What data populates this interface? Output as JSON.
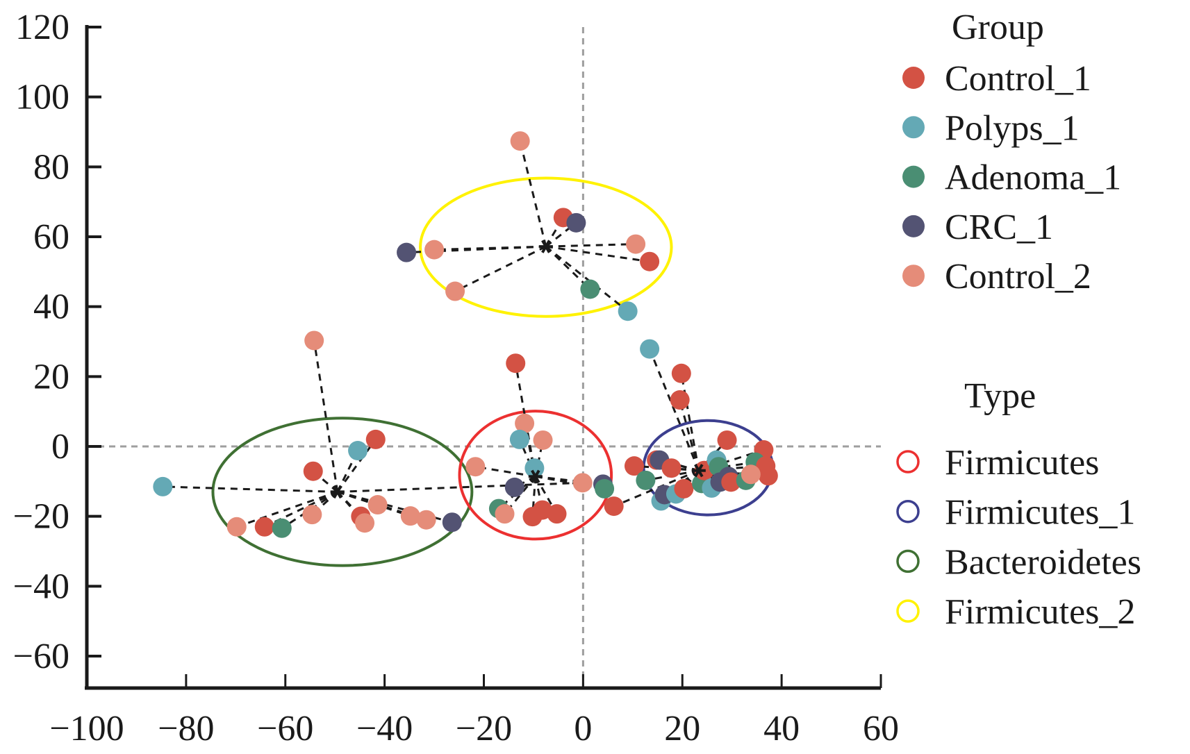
{
  "chart_data": {
    "type": "scatter",
    "title": "",
    "xlabel": "",
    "ylabel": "",
    "xlim": [
      -100,
      60
    ],
    "ylim": [
      -60,
      120
    ],
    "xticks": [
      -100,
      -80,
      -60,
      -40,
      -20,
      0,
      20,
      40,
      60
    ],
    "yticks": [
      -60,
      -40,
      -20,
      0,
      20,
      40,
      60,
      80,
      100,
      120
    ],
    "xtick_labels": [
      "−100",
      "−80",
      "−60",
      "−40",
      "−20",
      "0",
      "20",
      "40",
      "60"
    ],
    "ytick_labels": [
      "−60",
      "−40",
      "−20",
      "0",
      "20",
      "40",
      "60",
      "80",
      "100",
      "120"
    ],
    "reference_lines": {
      "x": 0,
      "y": 0,
      "style": "dashed",
      "color": "#9e9e9e"
    },
    "grid": false,
    "legend_placement": "right",
    "group_legend": {
      "title": "Group",
      "entries": [
        {
          "name": "Control_1",
          "color": "#d35244"
        },
        {
          "name": "Polyps_1",
          "color": "#64a9b5"
        },
        {
          "name": "Adenoma_1",
          "color": "#4a8e73"
        },
        {
          "name": "CRC_1",
          "color": "#535373"
        },
        {
          "name": "Control_2",
          "color": "#e58c79"
        }
      ]
    },
    "type_legend": {
      "title": "Type",
      "entries": [
        {
          "name": "Firmicutes",
          "color": "#ec3030"
        },
        {
          "name": "Firmicutes_1",
          "color": "#3c3f8f"
        },
        {
          "name": "Bacteroidetes",
          "color": "#3f7033"
        },
        {
          "name": "Firmicutes_2",
          "color": "#fff200"
        }
      ]
    },
    "clusters": [
      {
        "type": "Firmicutes_2",
        "centroid": [
          -7.5,
          57.2
        ],
        "ellipse": {
          "cx": -7.5,
          "cy": 57,
          "rx": 25.3,
          "ry": 19.8
        },
        "points": [
          {
            "group": "Control_2",
            "x": -12.7,
            "y": 87.4
          },
          {
            "group": "Control_1",
            "x": -4.0,
            "y": 65.5
          },
          {
            "group": "CRC_1",
            "x": -1.4,
            "y": 64.0
          },
          {
            "group": "CRC_1",
            "x": -35.6,
            "y": 55.5
          },
          {
            "group": "Control_2",
            "x": -30.0,
            "y": 56.3
          },
          {
            "group": "Control_2",
            "x": 10.6,
            "y": 57.9
          },
          {
            "group": "Control_1",
            "x": 13.4,
            "y": 52.9
          },
          {
            "group": "Control_2",
            "x": -25.8,
            "y": 44.4
          },
          {
            "group": "Adenoma_1",
            "x": 1.4,
            "y": 45.0
          },
          {
            "group": "Polyps_1",
            "x": 9.0,
            "y": 38.7
          }
        ]
      },
      {
        "type": "Bacteroidetes",
        "centroid": [
          -49.5,
          -13.0
        ],
        "ellipse": {
          "cx": -48.5,
          "cy": -13,
          "rx": 26.1,
          "ry": 21.1
        },
        "points": [
          {
            "group": "Control_2",
            "x": -54.2,
            "y": 30.3
          },
          {
            "group": "Control_1",
            "x": -41.8,
            "y": 2.0
          },
          {
            "group": "Polyps_1",
            "x": -45.4,
            "y": -1.2
          },
          {
            "group": "Control_1",
            "x": -54.4,
            "y": -7.1
          },
          {
            "group": "Polyps_1",
            "x": -84.7,
            "y": -11.5
          },
          {
            "group": "Control_2",
            "x": -69.8,
            "y": -23.0
          },
          {
            "group": "Control_1",
            "x": -64.2,
            "y": -23.0
          },
          {
            "group": "Adenoma_1",
            "x": -60.7,
            "y": -23.4
          },
          {
            "group": "Control_2",
            "x": -54.6,
            "y": -19.5
          },
          {
            "group": "Control_1",
            "x": -44.8,
            "y": -20.0
          },
          {
            "group": "Control_2",
            "x": -44.0,
            "y": -21.9
          },
          {
            "group": "Control_2",
            "x": -41.4,
            "y": -16.7
          },
          {
            "group": "Control_2",
            "x": -34.8,
            "y": -19.9
          },
          {
            "group": "Control_2",
            "x": -31.6,
            "y": -21.0
          },
          {
            "group": "CRC_1",
            "x": -26.4,
            "y": -21.7
          },
          {
            "group": "Control_2",
            "x": -0.1,
            "y": -10.4
          }
        ]
      },
      {
        "type": "Firmicutes",
        "centroid": [
          -9.6,
          -8.6
        ],
        "ellipse": {
          "cx": -9.6,
          "cy": -8.2,
          "rx": 15.3,
          "ry": 18.3
        },
        "points": [
          {
            "group": "Control_1",
            "x": -13.6,
            "y": 23.8
          },
          {
            "group": "Control_2",
            "x": -11.8,
            "y": 6.6
          },
          {
            "group": "Polyps_1",
            "x": -12.8,
            "y": 2.0
          },
          {
            "group": "Control_2",
            "x": -8.1,
            "y": 1.8
          },
          {
            "group": "Control_2",
            "x": -21.7,
            "y": -5.8
          },
          {
            "group": "Polyps_1",
            "x": -9.8,
            "y": -6.2
          },
          {
            "group": "CRC_1",
            "x": -13.8,
            "y": -11.7
          },
          {
            "group": "Adenoma_1",
            "x": -17.0,
            "y": -17.8
          },
          {
            "group": "Control_2",
            "x": -15.8,
            "y": -19.3
          },
          {
            "group": "Control_1",
            "x": -10.2,
            "y": -20.1
          },
          {
            "group": "Control_1",
            "x": -8.2,
            "y": -18.2
          },
          {
            "group": "Control_1",
            "x": -5.3,
            "y": -19.3
          },
          {
            "group": "CRC_1",
            "x": 4.0,
            "y": -10.8
          },
          {
            "group": "Adenoma_1",
            "x": 4.3,
            "y": -12.1
          }
        ]
      },
      {
        "type": "Firmicutes_1",
        "centroid": [
          23.3,
          -6.9
        ],
        "ellipse": {
          "cx": 25.2,
          "cy": -6.1,
          "rx": 13.0,
          "ry": 13.5
        },
        "points": [
          {
            "group": "Polyps_1",
            "x": 13.4,
            "y": 27.9
          },
          {
            "group": "Control_1",
            "x": 19.8,
            "y": 20.9
          },
          {
            "group": "Control_1",
            "x": 19.5,
            "y": 13.3
          },
          {
            "group": "Control_1",
            "x": 29.0,
            "y": 1.8
          },
          {
            "group": "Control_1",
            "x": 36.4,
            "y": -1.0
          },
          {
            "group": "Control_1",
            "x": 10.3,
            "y": -5.6
          },
          {
            "group": "Control_1",
            "x": 14.8,
            "y": -3.9
          },
          {
            "group": "CRC_1",
            "x": 15.4,
            "y": -3.9
          },
          {
            "group": "Control_1",
            "x": 17.8,
            "y": -6.2
          },
          {
            "group": "Adenoma_1",
            "x": 12.6,
            "y": -9.7
          },
          {
            "group": "Control_1",
            "x": 6.2,
            "y": -17.1
          },
          {
            "group": "Polyps_1",
            "x": 15.7,
            "y": -15.6
          },
          {
            "group": "CRC_1",
            "x": 16.4,
            "y": -13.8
          },
          {
            "group": "Polyps_1",
            "x": 18.7,
            "y": -13.6
          },
          {
            "group": "Control_1",
            "x": 20.3,
            "y": -12.1
          },
          {
            "group": "Adenoma_1",
            "x": 23.9,
            "y": -10.6
          },
          {
            "group": "Control_1",
            "x": 24.4,
            "y": -6.9
          },
          {
            "group": "Polyps_1",
            "x": 26.9,
            "y": -3.9
          },
          {
            "group": "Adenoma_1",
            "x": 27.3,
            "y": -5.8
          },
          {
            "group": "Polyps_1",
            "x": 25.9,
            "y": -11.9
          },
          {
            "group": "CRC_1",
            "x": 27.6,
            "y": -10.2
          },
          {
            "group": "CRC_1",
            "x": 29.3,
            "y": -8.6
          },
          {
            "group": "Control_1",
            "x": 29.8,
            "y": -10.2
          },
          {
            "group": "Adenoma_1",
            "x": 32.8,
            "y": -9.7
          },
          {
            "group": "Adenoma_1",
            "x": 34.7,
            "y": -4.5
          },
          {
            "group": "Control_1",
            "x": 36.8,
            "y": -5.6
          },
          {
            "group": "Control_1",
            "x": 37.3,
            "y": -8.4
          },
          {
            "group": "Control_2",
            "x": 33.8,
            "y": -8.0
          }
        ]
      }
    ]
  }
}
